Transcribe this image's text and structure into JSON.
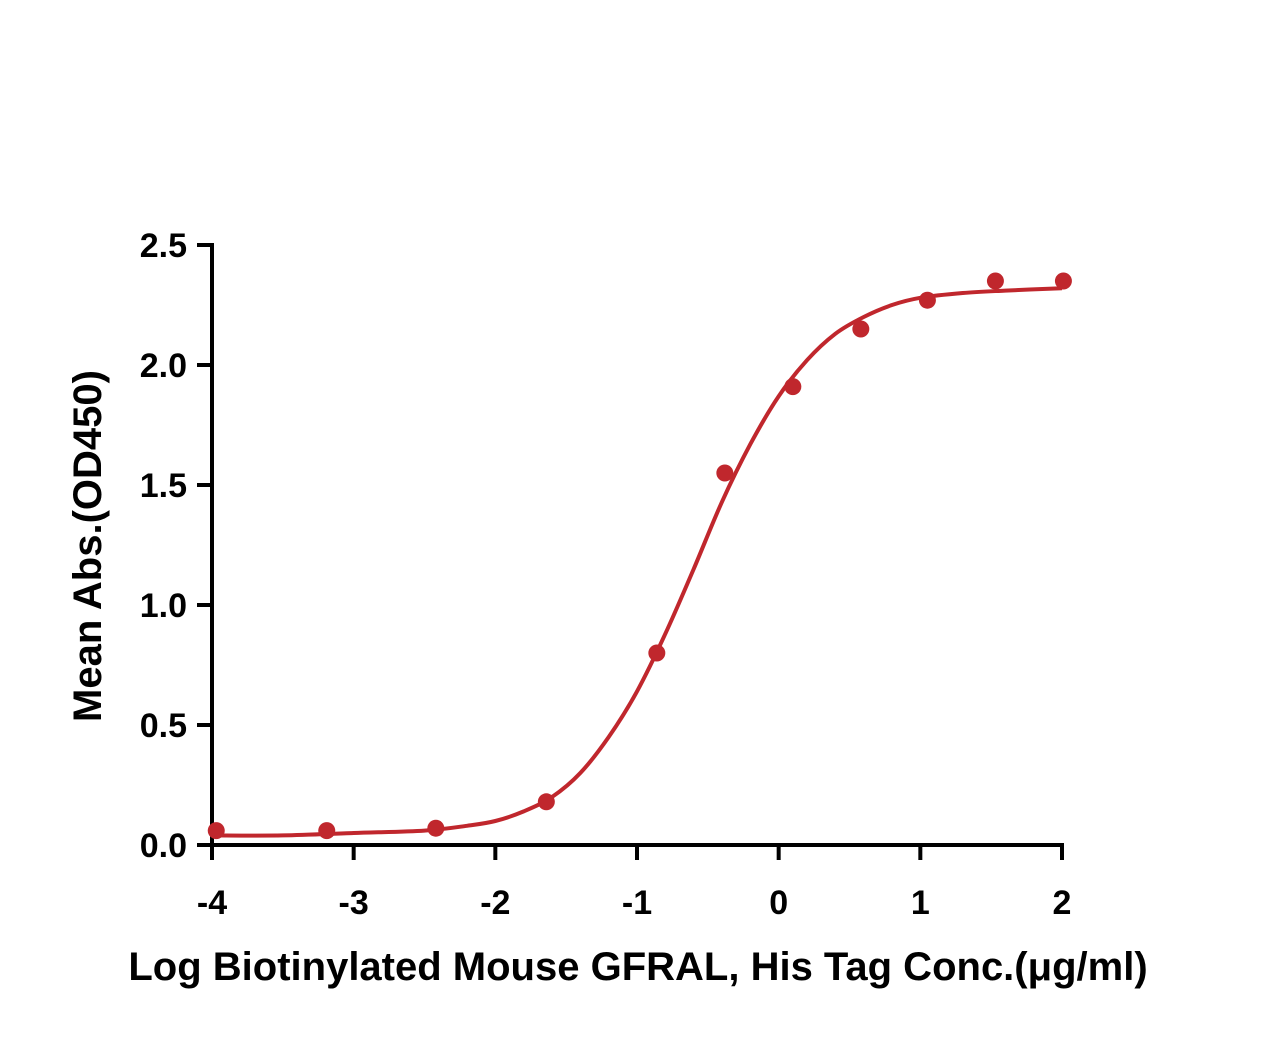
{
  "chart_data": {
    "type": "scatter",
    "xlabel": "Log Biotinylated Mouse GFRAL, His Tag Conc.(μg/ml)",
    "ylabel": "Mean Abs.(OD450)",
    "xlim": [
      -4,
      2
    ],
    "ylim": [
      0,
      2.5
    ],
    "x_ticks": [
      "-4",
      "-3",
      "-2",
      "-1",
      "0",
      "1",
      "2"
    ],
    "y_ticks": [
      "0.0",
      "0.5",
      "1.0",
      "1.5",
      "2.0",
      "2.5"
    ],
    "grid": false,
    "color": "#c0272d",
    "points": [
      {
        "x": -3.97,
        "y": 0.06
      },
      {
        "x": -3.19,
        "y": 0.06
      },
      {
        "x": -2.42,
        "y": 0.07
      },
      {
        "x": -1.64,
        "y": 0.18
      },
      {
        "x": -0.86,
        "y": 0.8
      },
      {
        "x": -0.38,
        "y": 1.55
      },
      {
        "x": 0.1,
        "y": 1.91
      },
      {
        "x": 0.58,
        "y": 2.15
      },
      {
        "x": 1.05,
        "y": 2.27
      },
      {
        "x": 1.53,
        "y": 2.35
      },
      {
        "x": 2.01,
        "y": 2.35
      }
    ],
    "fit_curve": [
      {
        "x": -4.0,
        "y": 0.04
      },
      {
        "x": -3.5,
        "y": 0.04
      },
      {
        "x": -3.0,
        "y": 0.05
      },
      {
        "x": -2.5,
        "y": 0.06
      },
      {
        "x": -2.2,
        "y": 0.08
      },
      {
        "x": -2.0,
        "y": 0.1
      },
      {
        "x": -1.8,
        "y": 0.14
      },
      {
        "x": -1.6,
        "y": 0.2
      },
      {
        "x": -1.4,
        "y": 0.3
      },
      {
        "x": -1.2,
        "y": 0.45
      },
      {
        "x": -1.0,
        "y": 0.64
      },
      {
        "x": -0.8,
        "y": 0.88
      },
      {
        "x": -0.6,
        "y": 1.15
      },
      {
        "x": -0.4,
        "y": 1.43
      },
      {
        "x": -0.2,
        "y": 1.67
      },
      {
        "x": 0.0,
        "y": 1.87
      },
      {
        "x": 0.2,
        "y": 2.02
      },
      {
        "x": 0.4,
        "y": 2.13
      },
      {
        "x": 0.6,
        "y": 2.2
      },
      {
        "x": 0.8,
        "y": 2.25
      },
      {
        "x": 1.0,
        "y": 2.28
      },
      {
        "x": 1.3,
        "y": 2.3
      },
      {
        "x": 1.6,
        "y": 2.31
      },
      {
        "x": 2.0,
        "y": 2.32
      }
    ]
  }
}
